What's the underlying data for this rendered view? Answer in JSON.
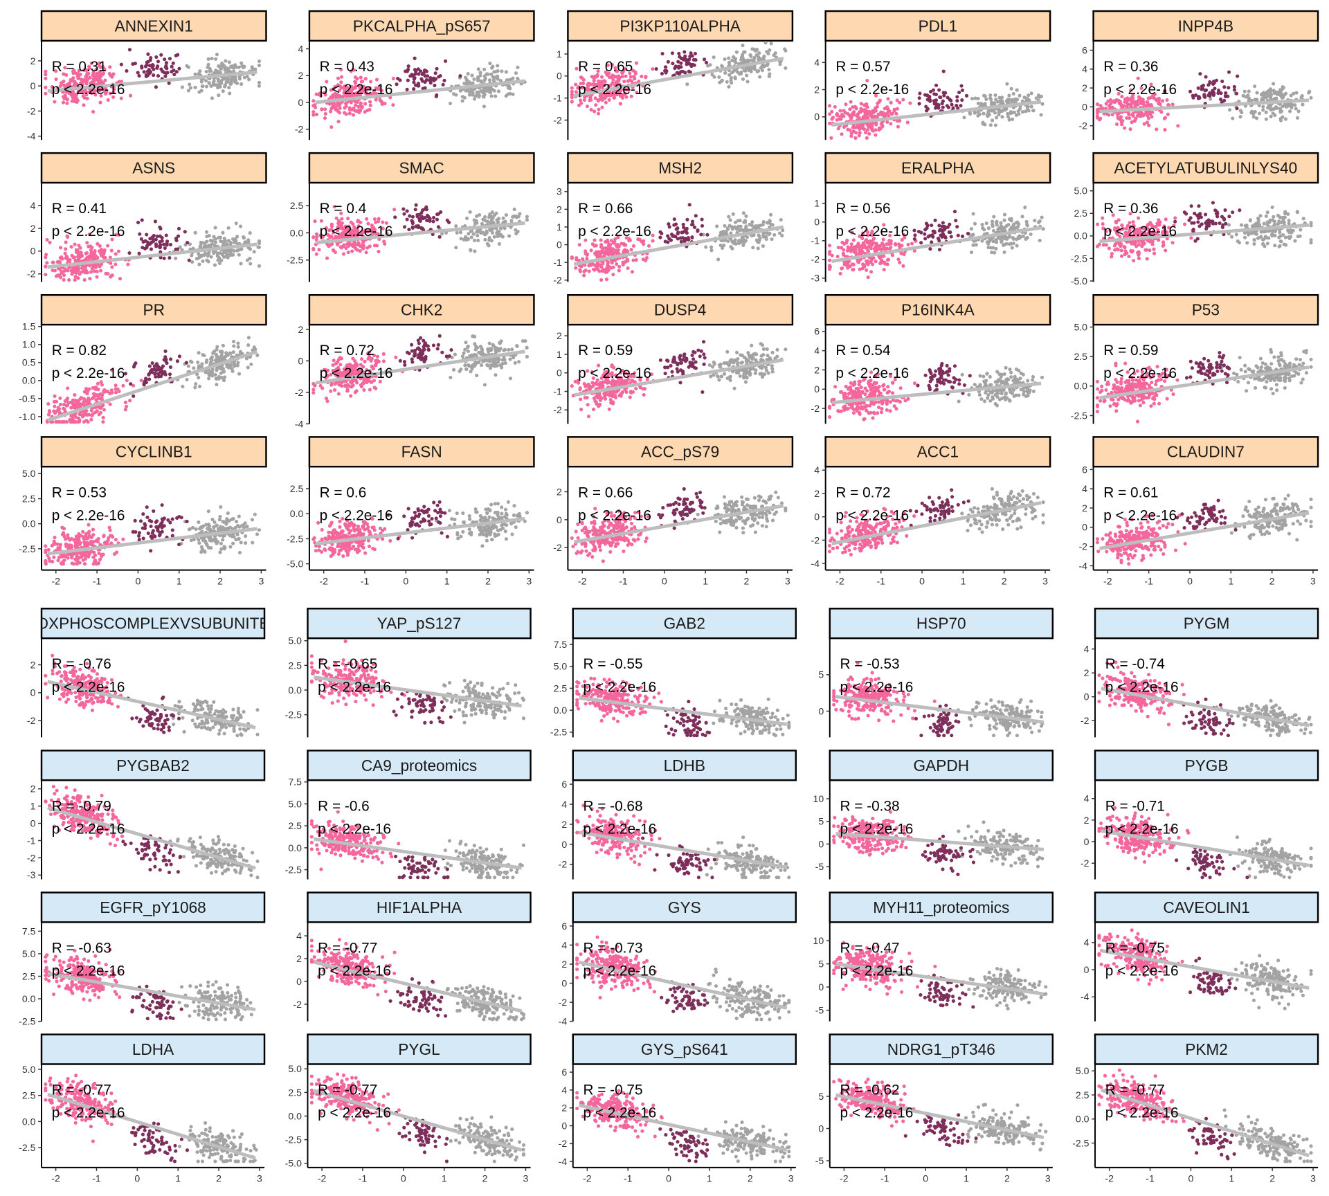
{
  "chart_data": {
    "type": "scatter",
    "layout": "facet-grid",
    "colors": {
      "group1_strip": "#FED8B1",
      "group2_strip": "#D6E9F6",
      "cluster_pink": "#F4679D",
      "cluster_dark": "#7E2E5A",
      "cluster_gray": "#A3A3A3",
      "fit_line": "#BDBDBD"
    },
    "xlim": [
      -2.35,
      3.12
    ],
    "x_ticks": [
      "-2",
      "-1",
      "0",
      "1",
      "2",
      "3"
    ],
    "panels": [
      {
        "title": "ANNEXIN1",
        "r": 0.31,
        "r_text": "R = 0.31",
        "p_text": "p < 2.2e-16",
        "yticks": [
          "2",
          "0",
          "-2",
          "-4"
        ],
        "ylim": [
          -4.3,
          3.6
        ],
        "fit": [
          -0.4,
          1.1
        ]
      },
      {
        "title": "PKCALPHA_pS657",
        "r": 0.43,
        "r_text": "R = 0.43",
        "p_text": "p < 2.2e-16",
        "yticks": [
          "4",
          "2",
          "0",
          "-2"
        ],
        "ylim": [
          -2.8,
          4.6
        ],
        "fit": [
          0.0,
          1.6
        ]
      },
      {
        "title": "PI3KP110ALPHA",
        "r": 0.65,
        "r_text": "R = 0.65",
        "p_text": "p < 2.2e-16",
        "yticks": [
          "1",
          "0",
          "-1",
          "-2"
        ],
        "ylim": [
          -2.9,
          1.6
        ],
        "fit": [
          -0.9,
          0.8
        ]
      },
      {
        "title": "PDL1",
        "r": 0.57,
        "r_text": "R = 0.57",
        "p_text": "p < 2.2e-16",
        "yticks": [
          "4",
          "2",
          "0"
        ],
        "ylim": [
          -1.7,
          5.6
        ],
        "fit": [
          -0.6,
          1.1
        ]
      },
      {
        "title": "INPP4B",
        "r": 0.36,
        "r_text": "R = 0.36",
        "p_text": "p < 2.2e-16",
        "yticks": [
          "6",
          "4",
          "2",
          "0",
          "-2"
        ],
        "ylim": [
          -3.5,
          7.0
        ],
        "fit": [
          -0.5,
          0.7
        ]
      },
      {
        "title": "ASNS",
        "r": 0.41,
        "r_text": "R = 0.41",
        "p_text": "p < 2.2e-16",
        "yticks": [
          "4",
          "2",
          "0",
          "-2"
        ],
        "ylim": [
          -2.7,
          6.0
        ],
        "fit": [
          -1.4,
          0.6
        ]
      },
      {
        "title": "SMAC",
        "r": 0.4,
        "r_text": "R = 0.4",
        "p_text": "p < 2.2e-16",
        "yticks": [
          "2.5",
          "0.0",
          "-2.5"
        ],
        "ylim": [
          -4.5,
          4.6
        ],
        "fit": [
          -0.9,
          0.9
        ]
      },
      {
        "title": "MSH2",
        "r": 0.66,
        "r_text": "R = 0.66",
        "p_text": "p < 2.2e-16",
        "yticks": [
          "3",
          "2",
          "1",
          "0",
          "-1",
          "-2"
        ],
        "ylim": [
          -2.1,
          3.5
        ],
        "fit": [
          -1.1,
          1.0
        ]
      },
      {
        "title": "ERALPHA",
        "r": 0.56,
        "r_text": "R = 0.56",
        "p_text": "p < 2.2e-16",
        "yticks": [
          "1",
          "0",
          "-1",
          "-2",
          "-3"
        ],
        "ylim": [
          -3.2,
          2.1
        ],
        "fit": [
          -2.1,
          -0.3
        ]
      },
      {
        "title": "ACETYLATUBULINLYS40",
        "r": 0.36,
        "r_text": "R = 0.36",
        "p_text": "p < 2.2e-16",
        "yticks": [
          "5.0",
          "2.5",
          "0.0",
          "-2.5",
          "-5.0"
        ],
        "ylim": [
          -5.1,
          5.9
        ],
        "fit": [
          -0.6,
          1.2
        ]
      },
      {
        "title": "PR",
        "r": 0.82,
        "r_text": "R = 0.82",
        "p_text": "p < 2.2e-16",
        "yticks": [
          "1.5",
          "1.0",
          "0.5",
          "0.0",
          "-0.5",
          "-1.0"
        ],
        "ylim": [
          -1.2,
          1.55
        ],
        "fit": [
          -1.1,
          0.8
        ]
      },
      {
        "title": "CHK2",
        "r": 0.72,
        "r_text": "R = 0.72",
        "p_text": "p < 2.2e-16",
        "yticks": [
          "2",
          "0",
          "-2",
          "-4"
        ],
        "ylim": [
          -4.0,
          2.3
        ],
        "fit": [
          -1.4,
          0.6
        ]
      },
      {
        "title": "DUSP4",
        "r": 0.59,
        "r_text": "R = 0.59",
        "p_text": "p < 2.2e-16",
        "yticks": [
          "2",
          "1",
          "0",
          "-1",
          "-2"
        ],
        "ylim": [
          -2.75,
          2.6
        ],
        "fit": [
          -1.2,
          0.7
        ]
      },
      {
        "title": "P16INK4A",
        "r": 0.54,
        "r_text": "R = 0.54",
        "p_text": "p < 2.2e-16",
        "yticks": [
          "6",
          "4",
          "2",
          "0",
          "-2"
        ],
        "ylim": [
          -3.6,
          6.7
        ],
        "fit": [
          -1.4,
          0.6
        ]
      },
      {
        "title": "P53",
        "r": 0.59,
        "r_text": "R = 0.59",
        "p_text": "p < 2.2e-16",
        "yticks": [
          "5.0",
          "2.5",
          "0.0",
          "-2.5"
        ],
        "ylim": [
          -3.2,
          5.2
        ],
        "fit": [
          -1.0,
          1.6
        ]
      },
      {
        "title": "CYCLINB1",
        "r": 0.53,
        "r_text": "R = 0.53",
        "p_text": "p < 2.2e-16",
        "yticks": [
          "5.0",
          "2.5",
          "0.0",
          "-2.5"
        ],
        "ylim": [
          -4.2,
          5.7
        ],
        "fit": [
          -3.0,
          -0.5
        ]
      },
      {
        "title": "FASN",
        "r": 0.6,
        "r_text": "R = 0.6",
        "p_text": "p < 2.2e-16",
        "yticks": [
          "2.5",
          "0.0",
          "-2.5",
          "-5.0"
        ],
        "ylim": [
          -5.2,
          4.7
        ],
        "fit": [
          -3.0,
          -0.5
        ]
      },
      {
        "title": "ACC_pS79",
        "r": 0.66,
        "r_text": "R = 0.66",
        "p_text": "p < 2.2e-16",
        "yticks": [
          "2",
          "0",
          "-2"
        ],
        "ylim": [
          -3.3,
          3.8
        ],
        "fit": [
          -1.6,
          1.0
        ]
      },
      {
        "title": "ACC1",
        "r": 0.72,
        "r_text": "R = 0.72",
        "p_text": "p < 2.2e-16",
        "yticks": [
          "4",
          "2",
          "0",
          "-2",
          "-4"
        ],
        "ylim": [
          -4.2,
          4.3
        ],
        "fit": [
          -2.3,
          1.2
        ]
      },
      {
        "title": "CLAUDIN7",
        "r": 0.61,
        "r_text": "R = 0.61",
        "p_text": "p < 2.2e-16",
        "yticks": [
          "6",
          "4",
          "2",
          "0",
          "-2",
          "-4"
        ],
        "ylim": [
          -4.0,
          6.3
        ],
        "fit": [
          -2.2,
          1.5
        ]
      },
      {
        "title": "OXPHOSCOMPLEXVSUBUNITB",
        "r": -0.76,
        "r_text": "R = -0.76",
        "p_text": "p < 2.2e-16",
        "yticks": [
          "2",
          "0",
          "-2"
        ],
        "ylim": [
          -3.2,
          3.9
        ],
        "fit": [
          0.8,
          -2.5
        ]
      },
      {
        "title": "YAP_pS127",
        "r": -0.65,
        "r_text": "R = -0.65",
        "p_text": "p < 2.2e-16",
        "yticks": [
          "5.0",
          "2.5",
          "0.0",
          "-2.5"
        ],
        "ylim": [
          -4.8,
          5.25
        ],
        "fit": [
          1.3,
          -1.6
        ]
      },
      {
        "title": "GAB2",
        "r": -0.55,
        "r_text": "R = -0.55",
        "p_text": "p < 2.2e-16",
        "yticks": [
          "7.5",
          "5.0",
          "2.5",
          "0.0",
          "-2.5"
        ],
        "ylim": [
          -3.1,
          8.2
        ],
        "fit": [
          1.4,
          -1.6
        ]
      },
      {
        "title": "HSP70",
        "r": -0.53,
        "r_text": "R = -0.53",
        "p_text": "p < 2.2e-16",
        "yticks": [
          "5",
          "0"
        ],
        "ylim": [
          -3.6,
          10.0
        ],
        "fit": [
          2.0,
          -1.5
        ]
      },
      {
        "title": "PYGM",
        "r": -0.74,
        "r_text": "R = -0.74",
        "p_text": "p < 2.2e-16",
        "yticks": [
          "4",
          "2",
          "0",
          "-2"
        ],
        "ylim": [
          -3.4,
          4.9
        ],
        "fit": [
          0.7,
          -2.4
        ]
      },
      {
        "title": "PYGBAB2",
        "r": -0.79,
        "r_text": "R = -0.79",
        "p_text": "p < 2.2e-16",
        "yticks": [
          "2",
          "1",
          "0",
          "-1",
          "-2",
          "-3"
        ],
        "ylim": [
          -3.25,
          2.5
        ],
        "fit": [
          0.9,
          -2.6
        ]
      },
      {
        "title": "CA9_proteomics",
        "r": -0.6,
        "r_text": "R = -0.6",
        "p_text": "p < 2.2e-16",
        "yticks": [
          "7.5",
          "5.0",
          "2.5",
          "0.0",
          "-2.5"
        ],
        "ylim": [
          -3.6,
          7.7
        ],
        "fit": [
          1.0,
          -2.3
        ]
      },
      {
        "title": "LDHB",
        "r": -0.68,
        "r_text": "R = -0.68",
        "p_text": "p < 2.2e-16",
        "yticks": [
          "6",
          "4",
          "2",
          "0",
          "-2"
        ],
        "ylim": [
          -3.5,
          6.4
        ],
        "fit": [
          1.2,
          -2.3
        ]
      },
      {
        "title": "GAPDH",
        "r": -0.38,
        "r_text": "R = -0.38",
        "p_text": "p < 2.2e-16",
        "yticks": [
          "10",
          "5",
          "0",
          "-5"
        ],
        "ylim": [
          -7.8,
          14.1
        ],
        "fit": [
          2.3,
          -1.2
        ]
      },
      {
        "title": "PYGB",
        "r": -0.71,
        "r_text": "R = -0.71",
        "p_text": "p < 2.2e-16",
        "yticks": [
          "4",
          "2",
          "0",
          "-2"
        ],
        "ylim": [
          -3.5,
          5.7
        ],
        "fit": [
          1.0,
          -2.2
        ]
      },
      {
        "title": "EGFR_pY1068",
        "r": -0.63,
        "r_text": "R = -0.63",
        "p_text": "p < 2.2e-16",
        "yticks": [
          "7.5",
          "5.0",
          "2.5",
          "0.0",
          "-2.5"
        ],
        "ylim": [
          -2.5,
          8.5
        ],
        "fit": [
          2.8,
          -1.2
        ]
      },
      {
        "title": "HIF1ALPHA",
        "r": -0.77,
        "r_text": "R = -0.77",
        "p_text": "p < 2.2e-16",
        "yticks": [
          "4",
          "2",
          "0",
          "-2"
        ],
        "ylim": [
          -3.5,
          5.2
        ],
        "fit": [
          1.7,
          -2.6
        ]
      },
      {
        "title": "GYS",
        "r": -0.73,
        "r_text": "R = -0.73",
        "p_text": "p < 2.2e-16",
        "yticks": [
          "6",
          "4",
          "2",
          "0",
          "-2",
          "-4"
        ],
        "ylim": [
          -4.0,
          6.4
        ],
        "fit": [
          2.2,
          -2.6
        ]
      },
      {
        "title": "MYH11_proteomics",
        "r": -0.47,
        "r_text": "R = -0.47",
        "p_text": "p < 2.2e-16",
        "yticks": [
          "10",
          "5",
          "0",
          "-5"
        ],
        "ylim": [
          -7.4,
          14.0
        ],
        "fit": [
          5.0,
          -1.5
        ]
      },
      {
        "title": "CAVEOLIN1",
        "r": -0.75,
        "r_text": "R = -0.75",
        "p_text": "p < 2.2e-16",
        "yticks": [
          "4",
          "0",
          "-4"
        ],
        "ylim": [
          -7.6,
          7.0
        ],
        "fit": [
          2.8,
          -2.7
        ]
      },
      {
        "title": "LDHA",
        "r": -0.77,
        "r_text": "R = -0.77",
        "p_text": "p < 2.2e-16",
        "yticks": [
          "5.0",
          "2.5",
          "0.0",
          "-2.5"
        ],
        "ylim": [
          -4.0,
          5.5
        ],
        "fit": [
          2.6,
          -3.5
        ]
      },
      {
        "title": "PYGL",
        "r": -0.77,
        "r_text": "R = -0.77",
        "p_text": "p < 2.2e-16",
        "yticks": [
          "5.0",
          "2.5",
          "0.0",
          "-2.5",
          "-5.0"
        ],
        "ylim": [
          -5.0,
          5.5
        ],
        "fit": [
          2.7,
          -3.6
        ]
      },
      {
        "title": "GYS_pS641",
        "r": -0.75,
        "r_text": "R = -0.75",
        "p_text": "p < 2.2e-16",
        "yticks": [
          "6",
          "4",
          "2",
          "0",
          "-2",
          "-4"
        ],
        "ylim": [
          -4.2,
          6.9
        ],
        "fit": [
          2.3,
          -2.7
        ]
      },
      {
        "title": "NDRG1_pT346",
        "r": -0.62,
        "r_text": "R = -0.62",
        "p_text": "p < 2.2e-16",
        "yticks": [
          "5",
          "0",
          "-5"
        ],
        "ylim": [
          -5.4,
          10.0
        ],
        "fit": [
          5.2,
          -1.4
        ]
      },
      {
        "title": "PKM2",
        "r": -0.77,
        "r_text": "R = -0.77",
        "p_text": "p < 2.2e-16",
        "yticks": [
          "5.0",
          "2.5",
          "0.0",
          "-2.5"
        ],
        "ylim": [
          -4.6,
          5.7
        ],
        "fit": [
          3.0,
          -3.8
        ]
      }
    ]
  }
}
